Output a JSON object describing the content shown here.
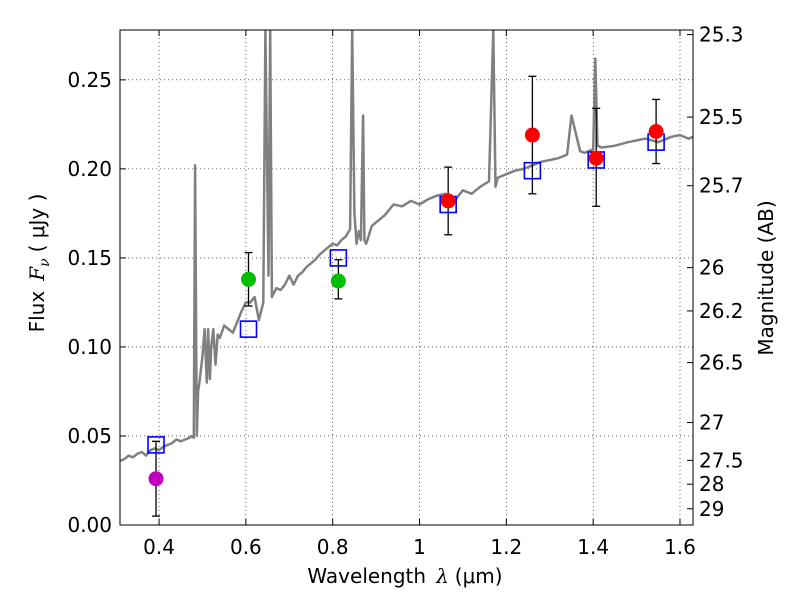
{
  "chart_data": {
    "type": "scatter",
    "xlabel": "Wavelength",
    "xlabel_symbol": "λ",
    "xlabel_unit": "(μm)",
    "ylabel": "Flux",
    "ylabel_symbol": "F",
    "ylabel_subscript": "ν",
    "ylabel_unit": "( μJy )",
    "y2label": "Magnitude (AB)",
    "xlim": [
      0.31,
      1.63
    ],
    "ylim": [
      0.0,
      0.278
    ],
    "grid": true,
    "x_ticks": [
      0.4,
      0.6,
      0.8,
      1.0,
      1.2,
      1.4,
      1.6
    ],
    "x_tick_labels": [
      "0.4",
      "0.6",
      "0.8",
      "1",
      "1.2",
      "1.4",
      "1.6"
    ],
    "y_ticks": [
      0.0,
      0.05,
      0.1,
      0.15,
      0.2,
      0.25
    ],
    "y_tick_labels": [
      "0.00",
      "0.05",
      "0.10",
      "0.15",
      "0.20",
      "0.25"
    ],
    "y2_ticks": [
      {
        "label": "25.3",
        "mag": 25.3
      },
      {
        "label": "25.5",
        "mag": 25.5
      },
      {
        "label": "25.7",
        "mag": 25.7
      },
      {
        "label": "26",
        "mag": 26.0
      },
      {
        "label": "26.2",
        "mag": 26.2
      },
      {
        "label": "26.5",
        "mag": 26.5
      },
      {
        "label": "27",
        "mag": 27.0
      },
      {
        "label": "27.5",
        "mag": 27.5
      },
      {
        "label": "28",
        "mag": 28.0
      },
      {
        "label": "29",
        "mag": 29.0
      }
    ],
    "series": [
      {
        "name": "template spectrum",
        "kind": "line",
        "color": "#808080",
        "x": [
          0.31,
          0.32,
          0.33,
          0.34,
          0.35,
          0.36,
          0.37,
          0.38,
          0.39,
          0.4,
          0.41,
          0.42,
          0.43,
          0.44,
          0.45,
          0.46,
          0.47,
          0.475,
          0.48,
          0.483,
          0.487,
          0.49,
          0.493,
          0.5,
          0.505,
          0.51,
          0.513,
          0.517,
          0.52,
          0.525,
          0.53,
          0.535,
          0.54,
          0.55,
          0.56,
          0.57,
          0.58,
          0.59,
          0.6,
          0.61,
          0.62,
          0.63,
          0.64,
          0.645,
          0.652,
          0.656,
          0.66,
          0.67,
          0.68,
          0.69,
          0.7,
          0.71,
          0.72,
          0.73,
          0.74,
          0.75,
          0.76,
          0.77,
          0.78,
          0.79,
          0.8,
          0.81,
          0.82,
          0.83,
          0.84,
          0.845,
          0.85,
          0.855,
          0.86,
          0.865,
          0.87,
          0.873,
          0.877,
          0.88,
          0.89,
          0.9,
          0.92,
          0.94,
          0.96,
          0.98,
          1.0,
          1.02,
          1.04,
          1.06,
          1.08,
          1.1,
          1.12,
          1.14,
          1.16,
          1.17,
          1.175,
          1.18,
          1.19,
          1.2,
          1.22,
          1.24,
          1.26,
          1.28,
          1.3,
          1.32,
          1.34,
          1.35,
          1.37,
          1.38,
          1.4,
          1.405,
          1.41,
          1.42,
          1.45,
          1.48,
          1.5,
          1.52,
          1.55,
          1.58,
          1.6,
          1.62,
          1.63
        ],
        "y": [
          0.036,
          0.037,
          0.039,
          0.038,
          0.04,
          0.041,
          0.039,
          0.042,
          0.043,
          0.042,
          0.044,
          0.045,
          0.046,
          0.048,
          0.047,
          0.048,
          0.049,
          0.05,
          0.049,
          0.202,
          0.05,
          0.075,
          0.08,
          0.095,
          0.11,
          0.08,
          0.11,
          0.082,
          0.1,
          0.11,
          0.09,
          0.107,
          0.105,
          0.112,
          0.11,
          0.108,
          0.114,
          0.12,
          0.125,
          0.125,
          0.128,
          0.115,
          0.125,
          0.278,
          0.14,
          0.278,
          0.128,
          0.133,
          0.132,
          0.135,
          0.14,
          0.135,
          0.14,
          0.142,
          0.145,
          0.147,
          0.149,
          0.152,
          0.154,
          0.156,
          0.158,
          0.157,
          0.16,
          0.162,
          0.166,
          0.278,
          0.175,
          0.158,
          0.165,
          0.16,
          0.23,
          0.16,
          0.158,
          0.16,
          0.168,
          0.17,
          0.174,
          0.18,
          0.179,
          0.182,
          0.18,
          0.183,
          0.185,
          0.186,
          0.182,
          0.188,
          0.186,
          0.19,
          0.193,
          0.278,
          0.19,
          0.195,
          0.196,
          0.197,
          0.199,
          0.2,
          0.202,
          0.204,
          0.205,
          0.206,
          0.208,
          0.23,
          0.21,
          0.209,
          0.211,
          0.262,
          0.213,
          0.212,
          0.213,
          0.215,
          0.216,
          0.217,
          0.215,
          0.218,
          0.219,
          0.217,
          0.218
        ]
      },
      {
        "name": "model photometry",
        "kind": "open-square",
        "color": "#0000ff",
        "x": [
          0.393,
          0.606,
          0.813,
          1.066,
          1.26,
          1.407,
          1.545
        ],
        "y": [
          0.045,
          0.11,
          0.15,
          0.18,
          0.199,
          0.205,
          0.215
        ]
      },
      {
        "name": "observed photometry",
        "kind": "filled-circle-errorbar",
        "color_key": [
          "#bf00bf",
          "#00bf00",
          "#00bf00",
          "#ff0000",
          "#ff0000",
          "#ff0000",
          "#ff0000"
        ],
        "x": [
          0.393,
          0.606,
          0.813,
          1.066,
          1.26,
          1.407,
          1.545
        ],
        "y": [
          0.026,
          0.138,
          0.137,
          0.182,
          0.219,
          0.206,
          0.221
        ],
        "err_low": [
          0.005,
          0.123,
          0.127,
          0.163,
          0.186,
          0.179,
          0.203
        ],
        "err_high": [
          0.047,
          0.153,
          0.149,
          0.201,
          0.252,
          0.234,
          0.239
        ]
      }
    ]
  }
}
